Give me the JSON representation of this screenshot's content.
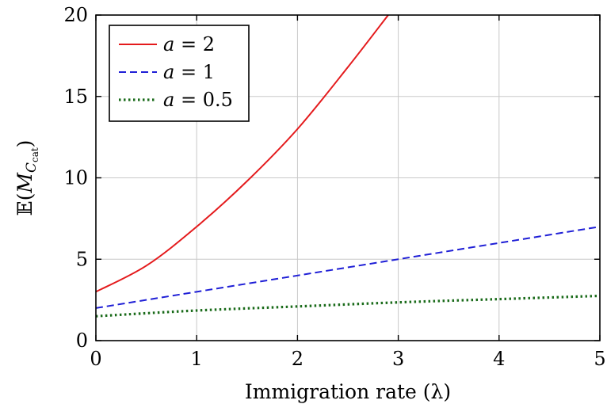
{
  "chart_data": {
    "type": "line",
    "title": "",
    "xlabel": "Immigration rate (λ)",
    "ylabel": "𝔼(M_C_cat)",
    "ylabel_parts": {
      "prefix": "𝔼(",
      "var": "M",
      "sub": "C",
      "subsub": "cat",
      "suffix": ")"
    },
    "xlim": [
      0,
      5
    ],
    "ylim": [
      0,
      20
    ],
    "xticks": [
      0,
      1,
      2,
      3,
      4,
      5
    ],
    "yticks": [
      0,
      5,
      10,
      15,
      20
    ],
    "xtick_labels": [
      "0",
      "1",
      "2",
      "3",
      "4",
      "5"
    ],
    "ytick_labels": [
      "0",
      "5",
      "10",
      "15",
      "20"
    ],
    "grid": true,
    "legend_position": "top-left",
    "series": [
      {
        "name": "a = 2",
        "name_parts": {
          "var": "a",
          "eq": " = ",
          "num": "2"
        },
        "color": "#e41a1c",
        "style": "solid",
        "x": [
          0,
          0.5,
          1,
          1.5,
          2,
          2.5,
          2.9
        ],
        "y": [
          3.0,
          4.6,
          7.0,
          9.8,
          13.0,
          16.8,
          20.0
        ]
      },
      {
        "name": "a = 1",
        "name_parts": {
          "var": "a",
          "eq": " = ",
          "num": "1"
        },
        "color": "#1f1fd6",
        "style": "dashed",
        "x": [
          0,
          1,
          2,
          3,
          4,
          5
        ],
        "y": [
          2.0,
          3.0,
          4.0,
          5.0,
          6.0,
          7.0
        ]
      },
      {
        "name": "a = 0.5",
        "name_parts": {
          "var": "a",
          "eq": " = ",
          "num": "0.5"
        },
        "color": "#1a6b1a",
        "style": "dotted",
        "x": [
          0,
          1,
          2,
          3,
          4,
          5
        ],
        "y": [
          1.5,
          1.85,
          2.1,
          2.35,
          2.55,
          2.75
        ]
      }
    ]
  }
}
